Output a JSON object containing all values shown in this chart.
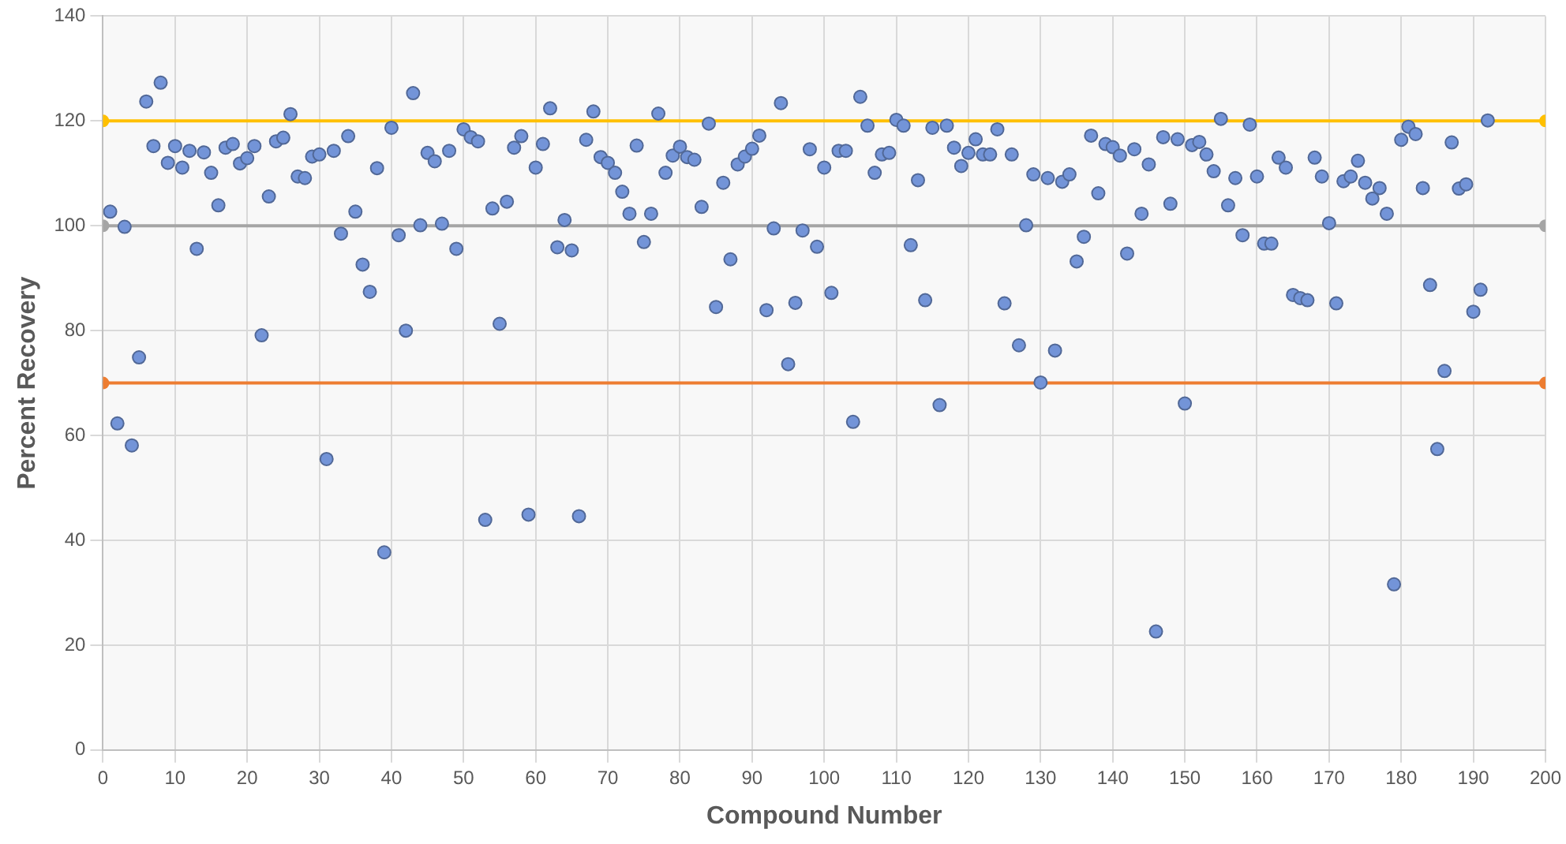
{
  "chart_data": {
    "type": "scatter",
    "xlabel": "Compound Number",
    "ylabel": "Percent Recovery",
    "xlim": [
      0,
      200
    ],
    "xticks": [
      0,
      10,
      20,
      30,
      40,
      50,
      60,
      70,
      80,
      90,
      100,
      110,
      120,
      130,
      140,
      150,
      160,
      170,
      180,
      190,
      200
    ],
    "ylim": [
      0,
      140
    ],
    "yticks": [
      0,
      20,
      40,
      60,
      80,
      100,
      120,
      140
    ],
    "grid": true,
    "legend": false,
    "marker": "circle",
    "series": [
      {
        "type": "line",
        "color": "#ffc000",
        "x": [
          0,
          200
        ],
        "values": [
          120,
          120
        ]
      },
      {
        "type": "line",
        "color": "#a5a5a5",
        "x": [
          0,
          200
        ],
        "values": [
          100,
          100
        ]
      },
      {
        "type": "line",
        "color": "#ed7d31",
        "x": [
          0,
          200
        ],
        "values": [
          70,
          70
        ]
      },
      {
        "color": "#7394d8",
        "x": [
          1,
          2,
          3,
          4,
          5,
          6,
          7,
          8,
          9,
          10,
          11,
          12,
          13,
          14,
          15,
          16,
          17,
          18,
          19,
          20,
          21,
          22,
          23,
          24,
          25,
          26,
          27,
          28,
          29,
          30,
          31,
          32,
          33,
          34,
          35,
          36,
          37,
          38,
          39,
          40,
          41,
          42,
          43,
          44,
          45,
          46,
          47,
          48,
          49,
          50,
          51,
          52,
          53,
          54,
          55,
          56,
          57,
          58,
          59,
          60,
          61,
          62,
          63,
          64,
          65,
          66,
          67,
          68,
          69,
          70,
          71,
          72,
          73,
          74,
          75,
          76,
          77,
          78,
          79,
          80,
          81,
          82,
          83,
          84,
          85,
          86,
          87,
          88,
          89,
          90,
          91,
          92,
          93,
          94,
          95,
          96,
          97,
          98,
          99,
          100,
          101,
          102,
          103,
          104,
          105,
          106,
          107,
          108,
          109,
          110,
          111,
          112,
          113,
          114,
          115,
          116,
          117,
          118,
          119,
          120,
          121,
          122,
          123,
          124,
          125,
          126,
          127,
          128,
          129,
          130,
          131,
          132,
          133,
          134,
          135,
          136,
          137,
          138,
          139,
          140,
          141,
          142,
          143,
          144,
          145,
          146,
          147,
          148,
          149,
          150,
          151,
          152,
          153,
          154,
          155,
          156,
          157,
          158,
          159,
          160,
          161,
          162,
          163,
          164,
          165,
          166,
          167,
          168,
          169,
          170,
          171,
          172,
          173,
          174,
          175,
          176,
          177,
          178,
          179,
          180,
          181,
          182,
          183,
          184,
          185,
          186,
          187,
          188,
          189,
          190,
          191,
          192
        ],
        "values": [
          102.7,
          62.3,
          99.8,
          58.1,
          74.9,
          123.7,
          115.2,
          127.3,
          112.0,
          115.2,
          111.1,
          114.3,
          95.6,
          114.0,
          110.1,
          103.9,
          114.9,
          115.6,
          111.9,
          112.9,
          115.2,
          79.1,
          105.6,
          116.1,
          116.8,
          121.3,
          109.4,
          109.1,
          113.2,
          113.6,
          55.5,
          114.3,
          98.5,
          117.1,
          102.7,
          92.6,
          87.4,
          111.0,
          37.7,
          118.7,
          98.2,
          80.0,
          125.3,
          100.1,
          113.9,
          112.3,
          100.4,
          114.3,
          95.6,
          118.4,
          116.9,
          116.1,
          43.9,
          103.3,
          81.3,
          104.6,
          114.9,
          117.1,
          44.9,
          111.1,
          115.6,
          122.4,
          95.9,
          101.1,
          95.3,
          44.6,
          116.4,
          121.8,
          113.1,
          112.0,
          110.1,
          106.5,
          102.3,
          115.3,
          96.9,
          102.3,
          121.4,
          110.1,
          113.4,
          115.1,
          113.1,
          112.6,
          103.6,
          119.5,
          84.5,
          108.2,
          93.6,
          111.7,
          113.2,
          114.7,
          117.2,
          83.9,
          99.5,
          123.4,
          73.6,
          85.3,
          99.1,
          114.6,
          96.0,
          111.1,
          87.2,
          114.3,
          114.3,
          62.6,
          124.6,
          119.1,
          110.1,
          113.6,
          113.9,
          120.2,
          119.1,
          96.3,
          108.7,
          85.8,
          118.7,
          65.8,
          119.1,
          114.9,
          111.4,
          113.9,
          116.5,
          113.6,
          113.6,
          118.4,
          85.2,
          113.6,
          77.2,
          100.1,
          109.8,
          70.1,
          109.1,
          76.2,
          108.4,
          109.8,
          93.2,
          97.9,
          117.2,
          106.2,
          115.6,
          115.0,
          113.4,
          94.7,
          114.6,
          102.3,
          111.7,
          22.6,
          116.9,
          104.2,
          116.5,
          66.1,
          115.4,
          116.0,
          113.6,
          110.4,
          120.4,
          103.9,
          109.1,
          98.2,
          119.3,
          109.4,
          96.6,
          96.6,
          113.0,
          111.1,
          86.8,
          86.2,
          85.8,
          113.0,
          109.4,
          100.5,
          85.2,
          108.5,
          109.4,
          112.4,
          108.2,
          105.2,
          107.2,
          102.3,
          31.6,
          116.4,
          118.9,
          117.5,
          107.2,
          88.7,
          57.4,
          72.3,
          115.9,
          107.1,
          107.9,
          83.6,
          87.8,
          120.1
        ]
      }
    ]
  }
}
